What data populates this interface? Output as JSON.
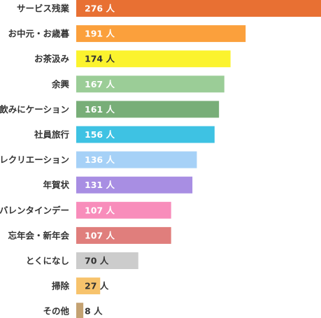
{
  "chart_data": {
    "type": "bar",
    "orientation": "horizontal",
    "title": "",
    "xlabel": "",
    "ylabel": "",
    "unit": "人",
    "xlim": [
      0,
      276
    ],
    "grid": false,
    "legend": "none",
    "categories": [
      "サービス残業",
      "お中元・お歳暮",
      "お茶汲み",
      "余興",
      "飲みにケーション",
      "社員旅行",
      "レクリエーション",
      "年賀状",
      "バレンタインデー",
      "忘年会・新年会",
      "とくになし",
      "掃除",
      "その他"
    ],
    "values": [
      276,
      191,
      174,
      167,
      161,
      156,
      136,
      131,
      107,
      107,
      70,
      27,
      8
    ],
    "colors": [
      "#e87033",
      "#fba03c",
      "#fbf32e",
      "#9bcd97",
      "#78ae78",
      "#3ec2e3",
      "#a6d1f7",
      "#a88ee3",
      "#f88dbb",
      "#e07e7c",
      "#cccccc",
      "#f7c36c",
      "#c4a272"
    ],
    "label_colors": [
      "#ffffff",
      "#ffffff",
      "#333333",
      "#ffffff",
      "#ffffff",
      "#ffffff",
      "#ffffff",
      "#ffffff",
      "#ffffff",
      "#ffffff",
      "#333333",
      "#333333",
      "#333333"
    ]
  }
}
